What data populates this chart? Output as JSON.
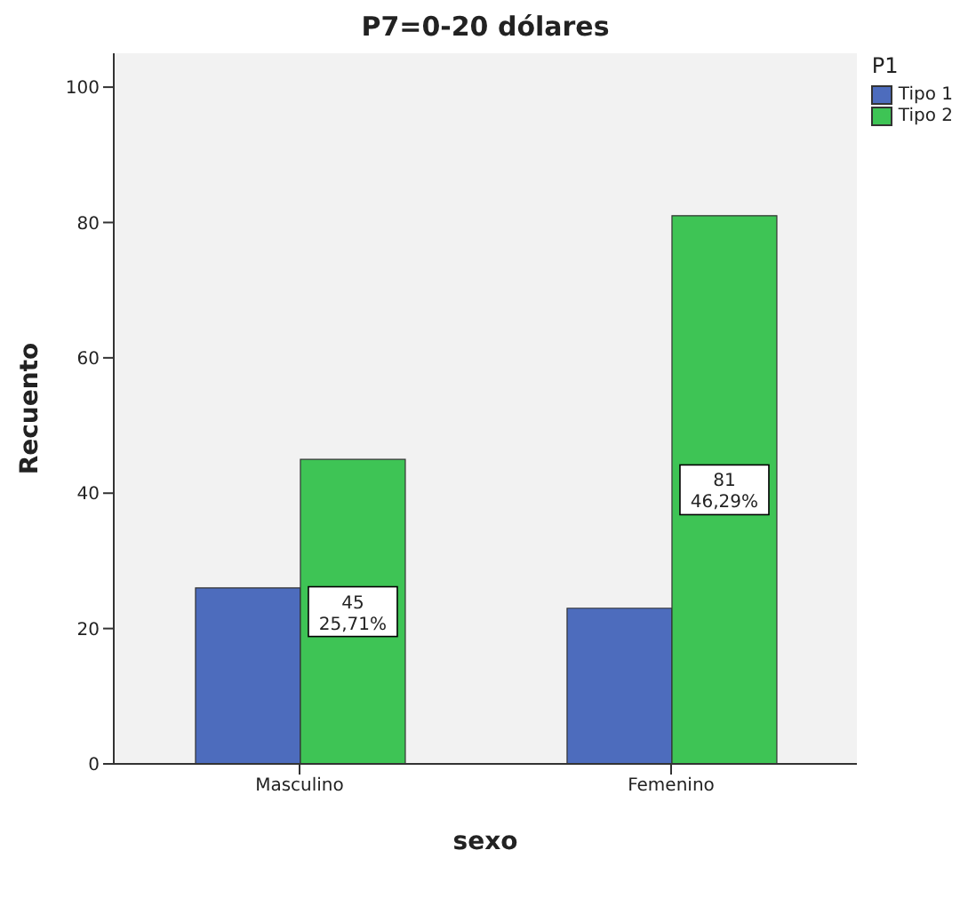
{
  "chart_data": {
    "type": "bar",
    "title": "P7=0-20 dólares",
    "xlabel": "sexo",
    "ylabel": "Recuento",
    "legend_title": "P1",
    "legend": "top right",
    "categories": [
      "Masculino",
      "Femenino"
    ],
    "series": [
      {
        "name": "Tipo 1",
        "color": "#4d6cbd",
        "values": [
          26,
          23
        ]
      },
      {
        "name": "Tipo 2",
        "color": "#3ec455",
        "values": [
          45,
          81
        ],
        "value_labels": [
          "45\n25,71%",
          "81\n46,29%"
        ]
      }
    ],
    "ylim": [
      0,
      105
    ],
    "yticks": [
      0,
      20,
      40,
      60,
      80,
      100
    ]
  }
}
